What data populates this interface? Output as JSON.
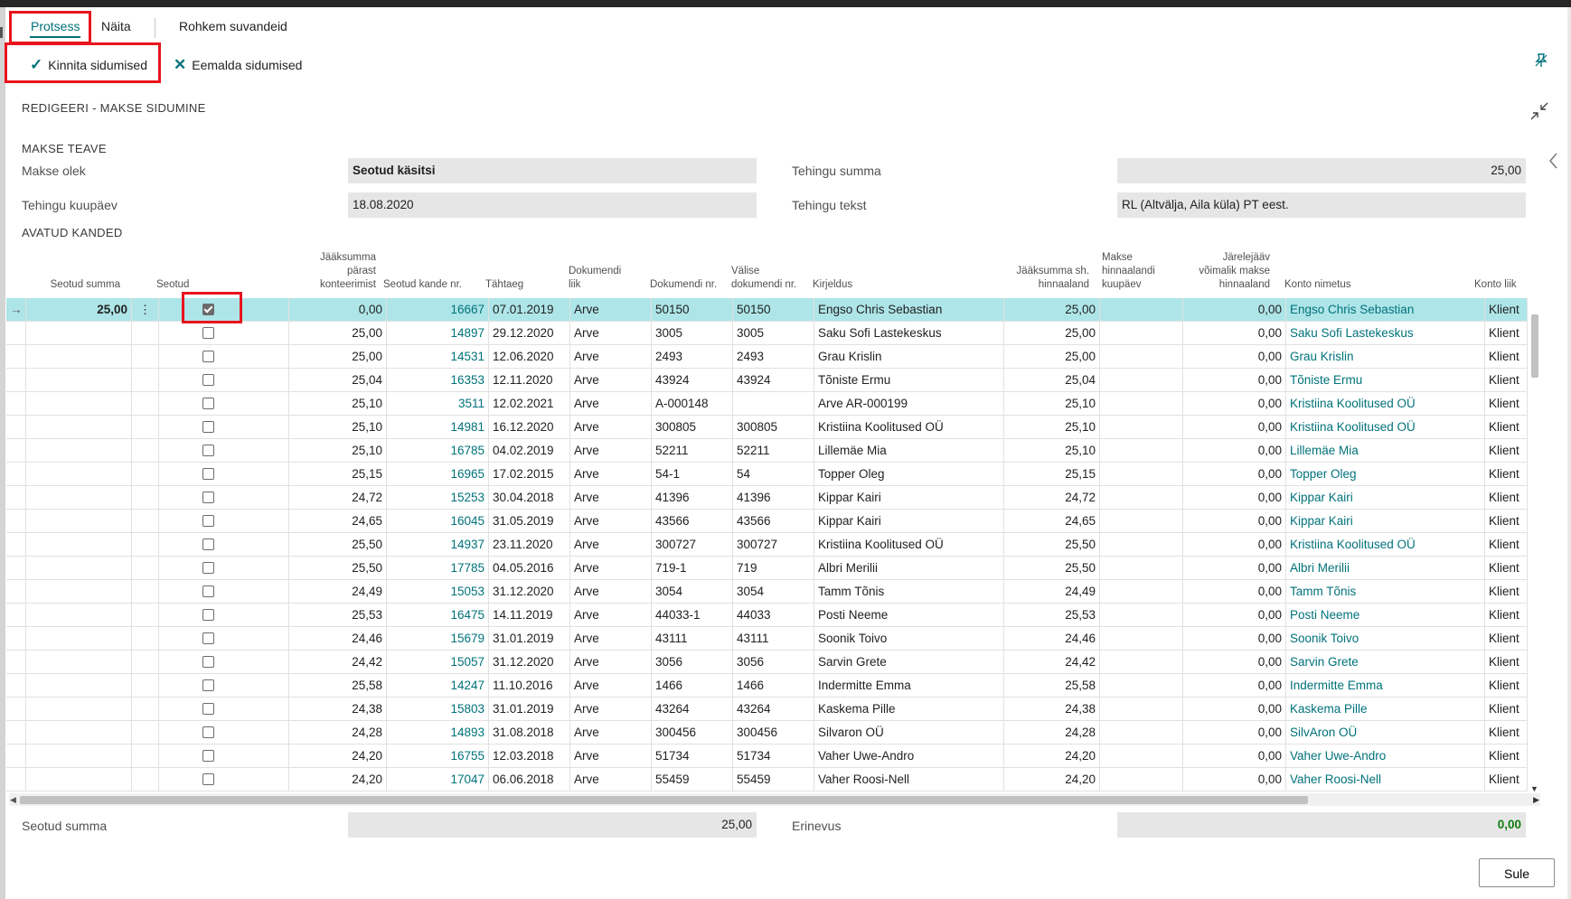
{
  "tabs": {
    "process": "Protsess",
    "show": "Näita",
    "more": "Rohkem suvandeid"
  },
  "actions": {
    "confirm": "Kinnita sidumised",
    "remove": "Eemalda sidumised"
  },
  "icons": {
    "confirm": "check-icon",
    "remove": "close-icon",
    "pin": "pin-icon",
    "collapse": "collapse-icon",
    "side": "chevron-left-icon"
  },
  "page": {
    "title": "REDIGEERI - MAKSE SIDUMINE"
  },
  "payment_info": {
    "heading": "MAKSE TEAVE",
    "status_label": "Makse olek",
    "status_value": "Seotud käsitsi",
    "trans_date_label": "Tehingu kuupäev",
    "trans_date_value": "18.08.2020",
    "trans_amount_label": "Tehingu summa",
    "trans_amount_value": "25,00",
    "trans_text_label": "Tehingu tekst",
    "trans_text_value": "RL (Altvälja, Aila küla) PT eest."
  },
  "open_entries": {
    "heading": "AVATUD KANDED",
    "columns": {
      "linked_amount": "Seotud summa",
      "linked": "Seotud",
      "rem_after": "Jääksumma pärast konteerimist",
      "entry_no": "Seotud kande nr.",
      "due": "Tähtaeg",
      "doc_type": "Dokumendi liik",
      "doc_no": "Dokumendi nr.",
      "ext_doc": "Välise dokumendi nr.",
      "desc": "Kirjeldus",
      "rem_disc": "Jääksumma sh. hinnaaland",
      "pay_disc_date": "Makse hinnaalandi kuupäev",
      "max_disc": "Järelejääv võimalik makse hinnaaland",
      "acc_name": "Konto nimetus",
      "acc_type": "Konto liik"
    },
    "rows": [
      {
        "linked_amount": "25,00",
        "checked": true,
        "rem_after": "0,00",
        "entry_no": "16667",
        "due": "07.01.2019",
        "doc_type": "Arve",
        "doc_no": "50150",
        "ext_doc": "50150",
        "desc": "Engso Chris Sebastian",
        "rem_disc": "25,00",
        "pay_disc_date": "",
        "max_disc": "0,00",
        "acc_name": "Engso Chris Sebastian",
        "acc_type": "Klient"
      },
      {
        "linked_amount": "",
        "checked": false,
        "rem_after": "25,00",
        "entry_no": "14897",
        "due": "29.12.2020",
        "doc_type": "Arve",
        "doc_no": "3005",
        "ext_doc": "3005",
        "desc": "Saku Sofi Lastekeskus",
        "rem_disc": "25,00",
        "pay_disc_date": "",
        "max_disc": "0,00",
        "acc_name": "Saku Sofi Lastekeskus",
        "acc_type": "Klient"
      },
      {
        "linked_amount": "",
        "checked": false,
        "rem_after": "25,00",
        "entry_no": "14531",
        "due": "12.06.2020",
        "doc_type": "Arve",
        "doc_no": "2493",
        "ext_doc": "2493",
        "desc": "Grau Krislin",
        "rem_disc": "25,00",
        "pay_disc_date": "",
        "max_disc": "0,00",
        "acc_name": "Grau Krislin",
        "acc_type": "Klient"
      },
      {
        "linked_amount": "",
        "checked": false,
        "rem_after": "25,04",
        "entry_no": "16353",
        "due": "12.11.2020",
        "doc_type": "Arve",
        "doc_no": "43924",
        "ext_doc": "43924",
        "desc": "Tõniste Ermu",
        "rem_disc": "25,04",
        "pay_disc_date": "",
        "max_disc": "0,00",
        "acc_name": "Tõniste Ermu",
        "acc_type": "Klient"
      },
      {
        "linked_amount": "",
        "checked": false,
        "rem_after": "25,10",
        "entry_no": "3511",
        "due": "12.02.2021",
        "doc_type": "Arve",
        "doc_no": "A-000148",
        "ext_doc": "",
        "desc": "Arve AR-000199",
        "rem_disc": "25,10",
        "pay_disc_date": "",
        "max_disc": "0,00",
        "acc_name": "Kristiina Koolitused OÜ",
        "acc_type": "Klient"
      },
      {
        "linked_amount": "",
        "checked": false,
        "rem_after": "25,10",
        "entry_no": "14981",
        "due": "16.12.2020",
        "doc_type": "Arve",
        "doc_no": "300805",
        "ext_doc": "300805",
        "desc": "Kristiina Koolitused OÜ",
        "rem_disc": "25,10",
        "pay_disc_date": "",
        "max_disc": "0,00",
        "acc_name": "Kristiina Koolitused OÜ",
        "acc_type": "Klient"
      },
      {
        "linked_amount": "",
        "checked": false,
        "rem_after": "25,10",
        "entry_no": "16785",
        "due": "04.02.2019",
        "doc_type": "Arve",
        "doc_no": "52211",
        "ext_doc": "52211",
        "desc": "Lillemäe Mia",
        "rem_disc": "25,10",
        "pay_disc_date": "",
        "max_disc": "0,00",
        "acc_name": "Lillemäe Mia",
        "acc_type": "Klient"
      },
      {
        "linked_amount": "",
        "checked": false,
        "rem_after": "25,15",
        "entry_no": "16965",
        "due": "17.02.2015",
        "doc_type": "Arve",
        "doc_no": "54-1",
        "ext_doc": "54",
        "desc": "Topper Oleg",
        "rem_disc": "25,15",
        "pay_disc_date": "",
        "max_disc": "0,00",
        "acc_name": "Topper Oleg",
        "acc_type": "Klient"
      },
      {
        "linked_amount": "",
        "checked": false,
        "rem_after": "24,72",
        "entry_no": "15253",
        "due": "30.04.2018",
        "doc_type": "Arve",
        "doc_no": "41396",
        "ext_doc": "41396",
        "desc": "Kippar Kairi",
        "rem_disc": "24,72",
        "pay_disc_date": "",
        "max_disc": "0,00",
        "acc_name": "Kippar Kairi",
        "acc_type": "Klient"
      },
      {
        "linked_amount": "",
        "checked": false,
        "rem_after": "24,65",
        "entry_no": "16045",
        "due": "31.05.2019",
        "doc_type": "Arve",
        "doc_no": "43566",
        "ext_doc": "43566",
        "desc": "Kippar Kairi",
        "rem_disc": "24,65",
        "pay_disc_date": "",
        "max_disc": "0,00",
        "acc_name": "Kippar Kairi",
        "acc_type": "Klient"
      },
      {
        "linked_amount": "",
        "checked": false,
        "rem_after": "25,50",
        "entry_no": "14937",
        "due": "23.11.2020",
        "doc_type": "Arve",
        "doc_no": "300727",
        "ext_doc": "300727",
        "desc": "Kristiina Koolitused OÜ",
        "rem_disc": "25,50",
        "pay_disc_date": "",
        "max_disc": "0,00",
        "acc_name": "Kristiina Koolitused OÜ",
        "acc_type": "Klient"
      },
      {
        "linked_amount": "",
        "checked": false,
        "rem_after": "25,50",
        "entry_no": "17785",
        "due": "04.05.2016",
        "doc_type": "Arve",
        "doc_no": "719-1",
        "ext_doc": "719",
        "desc": "Albri Merilii",
        "rem_disc": "25,50",
        "pay_disc_date": "",
        "max_disc": "0,00",
        "acc_name": "Albri Merilii",
        "acc_type": "Klient"
      },
      {
        "linked_amount": "",
        "checked": false,
        "rem_after": "24,49",
        "entry_no": "15053",
        "due": "31.12.2020",
        "doc_type": "Arve",
        "doc_no": "3054",
        "ext_doc": "3054",
        "desc": "Tamm Tõnis",
        "rem_disc": "24,49",
        "pay_disc_date": "",
        "max_disc": "0,00",
        "acc_name": "Tamm Tõnis",
        "acc_type": "Klient"
      },
      {
        "linked_amount": "",
        "checked": false,
        "rem_after": "25,53",
        "entry_no": "16475",
        "due": "14.11.2019",
        "doc_type": "Arve",
        "doc_no": "44033-1",
        "ext_doc": "44033",
        "desc": "Posti Neeme",
        "rem_disc": "25,53",
        "pay_disc_date": "",
        "max_disc": "0,00",
        "acc_name": "Posti Neeme",
        "acc_type": "Klient"
      },
      {
        "linked_amount": "",
        "checked": false,
        "rem_after": "24,46",
        "entry_no": "15679",
        "due": "31.01.2019",
        "doc_type": "Arve",
        "doc_no": "43111",
        "ext_doc": "43111",
        "desc": "Soonik Toivo",
        "rem_disc": "24,46",
        "pay_disc_date": "",
        "max_disc": "0,00",
        "acc_name": "Soonik Toivo",
        "acc_type": "Klient"
      },
      {
        "linked_amount": "",
        "checked": false,
        "rem_after": "24,42",
        "entry_no": "15057",
        "due": "31.12.2020",
        "doc_type": "Arve",
        "doc_no": "3056",
        "ext_doc": "3056",
        "desc": "Sarvin Grete",
        "rem_disc": "24,42",
        "pay_disc_date": "",
        "max_disc": "0,00",
        "acc_name": "Sarvin Grete",
        "acc_type": "Klient"
      },
      {
        "linked_amount": "",
        "checked": false,
        "rem_after": "25,58",
        "entry_no": "14247",
        "due": "11.10.2016",
        "doc_type": "Arve",
        "doc_no": "1466",
        "ext_doc": "1466",
        "desc": "Indermitte Emma",
        "rem_disc": "25,58",
        "pay_disc_date": "",
        "max_disc": "0,00",
        "acc_name": "Indermitte Emma",
        "acc_type": "Klient"
      },
      {
        "linked_amount": "",
        "checked": false,
        "rem_after": "24,38",
        "entry_no": "15803",
        "due": "31.01.2019",
        "doc_type": "Arve",
        "doc_no": "43264",
        "ext_doc": "43264",
        "desc": "Kaskema Pille",
        "rem_disc": "24,38",
        "pay_disc_date": "",
        "max_disc": "0,00",
        "acc_name": "Kaskema Pille",
        "acc_type": "Klient"
      },
      {
        "linked_amount": "",
        "checked": false,
        "rem_after": "24,28",
        "entry_no": "14893",
        "due": "31.08.2018",
        "doc_type": "Arve",
        "doc_no": "300456",
        "ext_doc": "300456",
        "desc": "Silvaron OÜ",
        "rem_disc": "24,28",
        "pay_disc_date": "",
        "max_disc": "0,00",
        "acc_name": "SilvAron OÜ",
        "acc_type": "Klient"
      },
      {
        "linked_amount": "",
        "checked": false,
        "rem_after": "24,20",
        "entry_no": "16755",
        "due": "12.03.2018",
        "doc_type": "Arve",
        "doc_no": "51734",
        "ext_doc": "51734",
        "desc": "Vaher Uwe-Andro",
        "rem_disc": "24,20",
        "pay_disc_date": "",
        "max_disc": "0,00",
        "acc_name": "Vaher Uwe-Andro",
        "acc_type": "Klient"
      },
      {
        "linked_amount": "",
        "checked": false,
        "rem_after": "24,20",
        "entry_no": "17047",
        "due": "06.06.2018",
        "doc_type": "Arve",
        "doc_no": "55459",
        "ext_doc": "55459",
        "desc": "Vaher Roosi-Nell",
        "rem_disc": "24,20",
        "pay_disc_date": "",
        "max_disc": "0,00",
        "acc_name": "Vaher Roosi-Nell",
        "acc_type": "Klient"
      }
    ]
  },
  "footer": {
    "linked_sum_label": "Seotud summa",
    "linked_sum_value": "25,00",
    "difference_label": "Erinevus",
    "difference_value": "0,00",
    "close_button": "Sule"
  },
  "colors": {
    "accent": "#00727a",
    "selected_row": "#aee5e8",
    "highlight": "#e8141e",
    "positive": "#107c10"
  }
}
